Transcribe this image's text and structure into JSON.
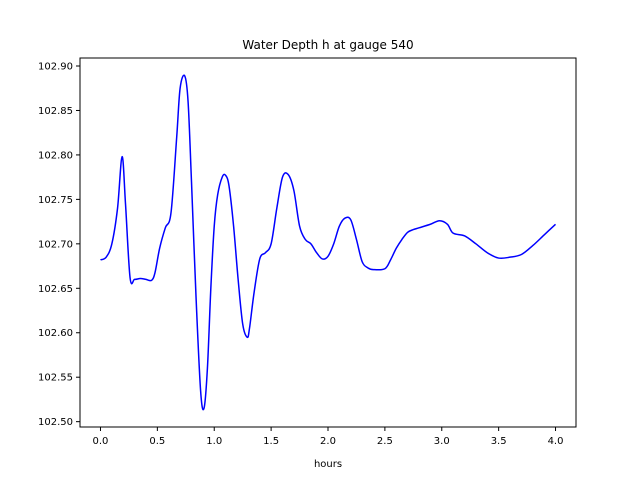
{
  "chart_data": {
    "type": "line",
    "title": "Water Depth h at gauge 540",
    "xlabel": "hours",
    "ylabel": "",
    "xlim": [
      -0.18,
      4.18
    ],
    "ylim": [
      102.494,
      102.909
    ],
    "xticks": [
      0.0,
      0.5,
      1.0,
      1.5,
      2.0,
      2.5,
      3.0,
      3.5,
      4.0
    ],
    "xtick_labels": [
      "0.0",
      "0.5",
      "1.0",
      "1.5",
      "2.0",
      "2.5",
      "3.0",
      "3.5",
      "4.0"
    ],
    "yticks": [
      102.5,
      102.55,
      102.6,
      102.65,
      102.7,
      102.75,
      102.8,
      102.85,
      102.9
    ],
    "ytick_labels": [
      "102.50",
      "102.55",
      "102.60",
      "102.65",
      "102.70",
      "102.75",
      "102.80",
      "102.85",
      "102.90"
    ],
    "grid": false,
    "series": [
      {
        "name": "",
        "color": "#0000ff",
        "x": [
          0.0,
          0.05,
          0.1,
          0.15,
          0.19,
          0.22,
          0.26,
          0.3,
          0.35,
          0.4,
          0.45,
          0.48,
          0.52,
          0.57,
          0.62,
          0.67,
          0.7,
          0.74,
          0.77,
          0.8,
          0.84,
          0.88,
          0.91,
          0.94,
          0.97,
          1.0,
          1.03,
          1.07,
          1.1,
          1.13,
          1.17,
          1.21,
          1.25,
          1.29,
          1.31,
          1.35,
          1.4,
          1.45,
          1.5,
          1.55,
          1.6,
          1.65,
          1.7,
          1.75,
          1.8,
          1.85,
          1.9,
          1.95,
          2.0,
          2.05,
          2.1,
          2.15,
          2.2,
          2.25,
          2.3,
          2.35,
          2.4,
          2.5,
          2.55,
          2.6,
          2.65,
          2.7,
          2.75,
          2.8,
          2.9,
          2.98,
          3.05,
          3.1,
          3.2,
          3.3,
          3.4,
          3.5,
          3.6,
          3.7,
          3.8,
          3.9,
          4.0
        ],
        "y": [
          102.682,
          102.685,
          102.7,
          102.74,
          102.798,
          102.745,
          102.662,
          102.66,
          102.661,
          102.66,
          102.659,
          102.668,
          102.695,
          102.718,
          102.735,
          102.82,
          102.875,
          102.889,
          102.86,
          102.77,
          102.64,
          102.535,
          102.515,
          102.56,
          102.65,
          102.72,
          102.755,
          102.775,
          102.777,
          102.765,
          102.72,
          102.66,
          102.61,
          102.595,
          102.605,
          102.645,
          102.683,
          102.69,
          102.7,
          102.74,
          102.775,
          102.778,
          102.76,
          102.72,
          102.705,
          102.7,
          102.69,
          102.683,
          102.686,
          102.7,
          102.72,
          102.729,
          102.727,
          102.705,
          102.68,
          102.673,
          102.671,
          102.672,
          102.682,
          102.695,
          102.705,
          102.713,
          102.716,
          102.718,
          102.722,
          102.726,
          102.722,
          102.712,
          102.709,
          102.7,
          102.69,
          102.684,
          102.685,
          102.688,
          102.698,
          102.71,
          102.722
        ]
      }
    ]
  }
}
